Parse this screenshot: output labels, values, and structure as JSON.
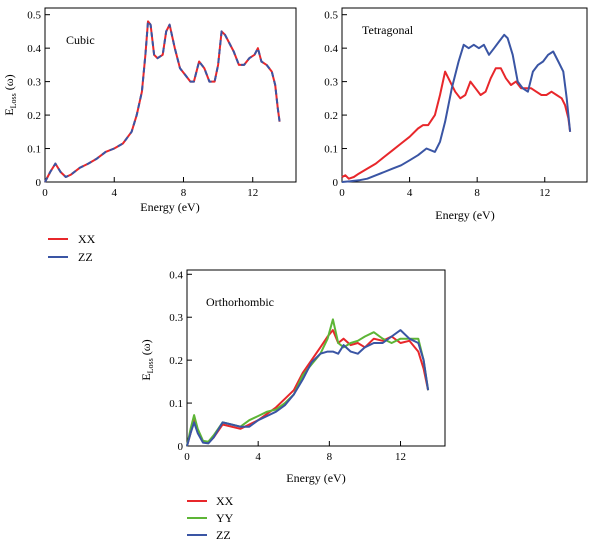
{
  "chart_data": [
    {
      "type": "line",
      "title": "Cubic",
      "xlabel": "Energy (eV)",
      "ylabel_main": "E",
      "ylabel_sub": "Loss",
      "ylabel_tail": " (ω)",
      "xlim": [
        0,
        14.5
      ],
      "ylim": [
        0,
        0.52
      ],
      "xticks": [
        0,
        4,
        8,
        12
      ],
      "xtick_labels": [
        "0",
        "4",
        "8",
        "12"
      ],
      "yticks": [
        0,
        0.1,
        0.2,
        0.3,
        0.4,
        0.5
      ],
      "ytick_labels": [
        "0",
        "0.1",
        "0.2",
        "0.3",
        "0.4",
        "0.5"
      ],
      "grid": false,
      "legend_position": "below",
      "series": [
        {
          "name": "XX",
          "color": "#e8272b",
          "dash": false,
          "x": [
            0,
            0.3,
            0.6,
            0.9,
            1.2,
            1.5,
            2,
            2.5,
            3,
            3.5,
            4,
            4.5,
            5,
            5.3,
            5.6,
            5.8,
            5.95,
            6.1,
            6.3,
            6.5,
            6.8,
            7,
            7.2,
            7.5,
            7.8,
            8.1,
            8.4,
            8.6,
            8.9,
            9.2,
            9.5,
            9.8,
            10.0,
            10.2,
            10.4,
            10.6,
            10.9,
            11.2,
            11.5,
            11.8,
            12.1,
            12.3,
            12.5,
            12.8,
            13.1,
            13.3,
            13.45,
            13.55
          ],
          "y": [
            0,
            0.03,
            0.055,
            0.03,
            0.015,
            0.022,
            0.042,
            0.055,
            0.07,
            0.09,
            0.1,
            0.115,
            0.15,
            0.2,
            0.27,
            0.38,
            0.48,
            0.47,
            0.38,
            0.37,
            0.38,
            0.45,
            0.47,
            0.4,
            0.34,
            0.32,
            0.3,
            0.3,
            0.36,
            0.34,
            0.3,
            0.3,
            0.35,
            0.45,
            0.44,
            0.42,
            0.39,
            0.35,
            0.35,
            0.37,
            0.38,
            0.4,
            0.36,
            0.35,
            0.33,
            0.29,
            0.22,
            0.18
          ]
        },
        {
          "name": "ZZ",
          "color": "#3a55a4",
          "dash": true,
          "x": [
            0,
            0.3,
            0.6,
            0.9,
            1.2,
            1.5,
            2,
            2.5,
            3,
            3.5,
            4,
            4.5,
            5,
            5.3,
            5.6,
            5.8,
            5.95,
            6.1,
            6.3,
            6.5,
            6.8,
            7,
            7.2,
            7.5,
            7.8,
            8.1,
            8.4,
            8.6,
            8.9,
            9.2,
            9.5,
            9.8,
            10.0,
            10.2,
            10.4,
            10.6,
            10.9,
            11.2,
            11.5,
            11.8,
            12.1,
            12.3,
            12.5,
            12.8,
            13.1,
            13.3,
            13.45,
            13.55
          ],
          "y": [
            0,
            0.03,
            0.055,
            0.03,
            0.015,
            0.022,
            0.042,
            0.055,
            0.07,
            0.09,
            0.1,
            0.115,
            0.15,
            0.2,
            0.27,
            0.38,
            0.48,
            0.47,
            0.38,
            0.37,
            0.38,
            0.45,
            0.47,
            0.4,
            0.34,
            0.32,
            0.3,
            0.3,
            0.36,
            0.34,
            0.3,
            0.3,
            0.35,
            0.45,
            0.44,
            0.42,
            0.39,
            0.35,
            0.35,
            0.37,
            0.38,
            0.4,
            0.36,
            0.35,
            0.33,
            0.29,
            0.22,
            0.18
          ]
        }
      ]
    },
    {
      "type": "line",
      "title": "Tetragonal",
      "xlabel": "Energy (eV)",
      "xlim": [
        0,
        14.5
      ],
      "ylim": [
        0,
        0.52
      ],
      "xticks": [
        0,
        4,
        8,
        12
      ],
      "xtick_labels": [
        "0",
        "4",
        "8",
        "12"
      ],
      "yticks": [
        0,
        0.1,
        0.2,
        0.3,
        0.4,
        0.5
      ],
      "ytick_labels": [
        "0",
        "0.1",
        "0.2",
        "0.3",
        "0.4",
        "0.5"
      ],
      "grid": false,
      "series": [
        {
          "name": "",
          "color": "#e8272b",
          "dash": false,
          "x": [
            0,
            0.2,
            0.4,
            0.7,
            1,
            1.5,
            2,
            2.5,
            3,
            3.5,
            4,
            4.5,
            4.8,
            5.1,
            5.5,
            5.8,
            6.1,
            6.4,
            6.7,
            7,
            7.3,
            7.6,
            7.9,
            8.2,
            8.5,
            8.8,
            9.1,
            9.4,
            9.7,
            10,
            10.3,
            10.6,
            10.9,
            11.2,
            11.5,
            11.8,
            12.1,
            12.4,
            12.7,
            13,
            13.2,
            13.4,
            13.5
          ],
          "y": [
            0.015,
            0.02,
            0.01,
            0.015,
            0.025,
            0.04,
            0.055,
            0.075,
            0.095,
            0.115,
            0.135,
            0.16,
            0.17,
            0.17,
            0.2,
            0.26,
            0.33,
            0.3,
            0.27,
            0.25,
            0.26,
            0.3,
            0.28,
            0.26,
            0.27,
            0.31,
            0.34,
            0.34,
            0.31,
            0.29,
            0.3,
            0.28,
            0.28,
            0.28,
            0.27,
            0.26,
            0.26,
            0.27,
            0.26,
            0.25,
            0.23,
            0.19,
            0.15
          ]
        },
        {
          "name": "",
          "color": "#3a55a4",
          "dash": false,
          "x": [
            0,
            0.5,
            1,
            1.5,
            2,
            2.5,
            3,
            3.5,
            4,
            4.5,
            5,
            5.5,
            5.8,
            6.1,
            6.5,
            6.9,
            7.2,
            7.5,
            7.8,
            8.1,
            8.4,
            8.7,
            9,
            9.3,
            9.6,
            9.8,
            10.1,
            10.4,
            10.7,
            11,
            11.3,
            11.6,
            11.9,
            12.2,
            12.5,
            12.8,
            13.1,
            13.3,
            13.5
          ],
          "y": [
            0,
            0.002,
            0.005,
            0.01,
            0.02,
            0.03,
            0.04,
            0.05,
            0.065,
            0.08,
            0.1,
            0.09,
            0.12,
            0.18,
            0.28,
            0.36,
            0.41,
            0.4,
            0.41,
            0.4,
            0.41,
            0.38,
            0.4,
            0.42,
            0.44,
            0.43,
            0.38,
            0.3,
            0.28,
            0.27,
            0.33,
            0.35,
            0.36,
            0.38,
            0.39,
            0.36,
            0.33,
            0.25,
            0.15
          ]
        }
      ]
    },
    {
      "type": "line",
      "title": "Orthorhombic",
      "xlabel": "Energy (eV)",
      "ylabel_main": "E",
      "ylabel_sub": "Loss",
      "ylabel_tail": " (ω)",
      "xlim": [
        0,
        14.5
      ],
      "ylim": [
        0,
        0.41
      ],
      "xticks": [
        0,
        4,
        8,
        12
      ],
      "xtick_labels": [
        "0",
        "4",
        "8",
        "12"
      ],
      "yticks": [
        0,
        0.1,
        0.2,
        0.3,
        0.4
      ],
      "ytick_labels": [
        "0",
        "0.1",
        "0.2",
        "0.3",
        "0.4"
      ],
      "grid": false,
      "legend_position": "below",
      "series": [
        {
          "name": "XX",
          "color": "#e8272b",
          "dash": false,
          "x": [
            0,
            0.2,
            0.4,
            0.6,
            0.9,
            1.2,
            1.5,
            2,
            2.5,
            3,
            3.5,
            4,
            4.5,
            5,
            5.5,
            6,
            6.5,
            7,
            7.5,
            7.9,
            8.2,
            8.5,
            8.8,
            9.2,
            9.6,
            10,
            10.5,
            11,
            11.5,
            12,
            12.5,
            13,
            13.3,
            13.55
          ],
          "y": [
            0,
            0.03,
            0.06,
            0.035,
            0.01,
            0.008,
            0.02,
            0.05,
            0.045,
            0.04,
            0.05,
            0.06,
            0.075,
            0.09,
            0.11,
            0.13,
            0.17,
            0.2,
            0.23,
            0.255,
            0.27,
            0.24,
            0.25,
            0.235,
            0.24,
            0.23,
            0.25,
            0.245,
            0.255,
            0.24,
            0.245,
            0.22,
            0.18,
            0.13
          ]
        },
        {
          "name": "YY",
          "color": "#5db536",
          "dash": false,
          "x": [
            0,
            0.2,
            0.4,
            0.6,
            0.9,
            1.2,
            1.5,
            2,
            2.5,
            3,
            3.5,
            4,
            4.5,
            5,
            5.5,
            6,
            6.5,
            7,
            7.5,
            7.9,
            8.2,
            8.5,
            8.8,
            9.2,
            9.6,
            10,
            10.5,
            11,
            11.5,
            12,
            12.5,
            13,
            13.3,
            13.55
          ],
          "y": [
            0,
            0.04,
            0.072,
            0.04,
            0.012,
            0.01,
            0.025,
            0.055,
            0.05,
            0.045,
            0.06,
            0.07,
            0.08,
            0.085,
            0.1,
            0.12,
            0.165,
            0.19,
            0.215,
            0.25,
            0.295,
            0.24,
            0.23,
            0.24,
            0.245,
            0.255,
            0.265,
            0.25,
            0.24,
            0.25,
            0.25,
            0.25,
            0.2,
            0.13
          ]
        },
        {
          "name": "ZZ",
          "color": "#3a55a4",
          "dash": false,
          "x": [
            0,
            0.2,
            0.4,
            0.6,
            0.9,
            1.2,
            1.5,
            2,
            2.5,
            3,
            3.5,
            4,
            4.5,
            5,
            5.5,
            6,
            6.5,
            7,
            7.5,
            7.9,
            8.2,
            8.5,
            8.8,
            9.2,
            9.6,
            10,
            10.5,
            11,
            11.5,
            12,
            12.5,
            13,
            13.3,
            13.55
          ],
          "y": [
            0,
            0.03,
            0.055,
            0.03,
            0.008,
            0.006,
            0.02,
            0.055,
            0.05,
            0.045,
            0.045,
            0.06,
            0.07,
            0.08,
            0.095,
            0.12,
            0.155,
            0.195,
            0.215,
            0.22,
            0.22,
            0.215,
            0.235,
            0.22,
            0.215,
            0.23,
            0.24,
            0.24,
            0.255,
            0.27,
            0.25,
            0.24,
            0.2,
            0.13
          ]
        }
      ]
    }
  ]
}
